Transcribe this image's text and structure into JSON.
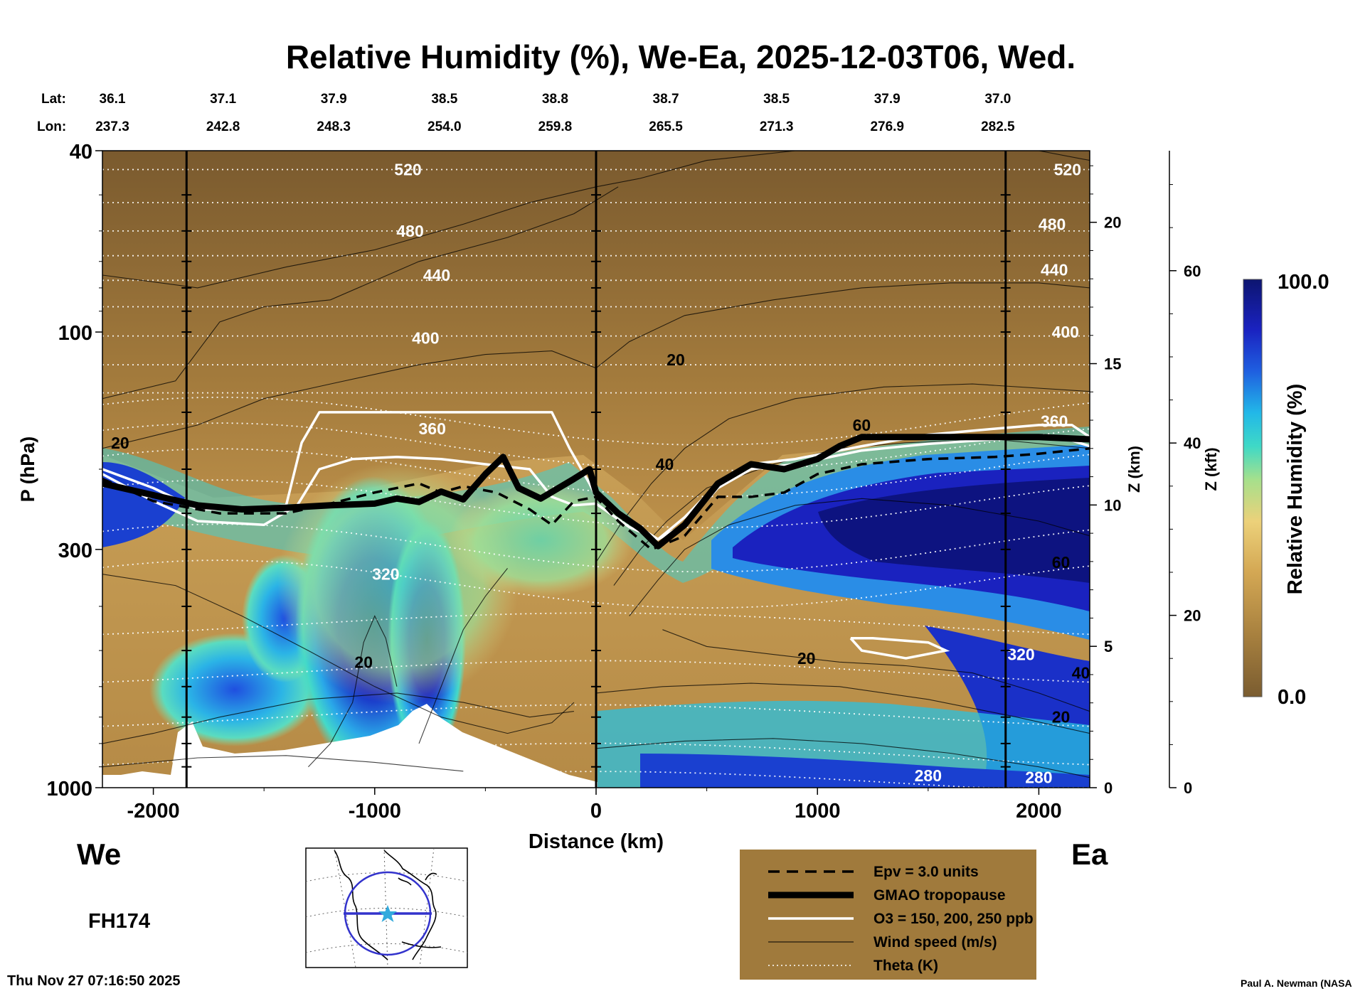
{
  "chart_data": {
    "type": "heatmap",
    "title": "Relative Humidity (%), We-Ea, 2025-12-03T06, Wed.",
    "xlabel": "Distance (km)",
    "ylabel": "P (hPa)",
    "right_axis_1_label": "Z (km)",
    "right_axis_2_label": "Z (kft)",
    "colorbar_label": "Relative Humidity (%)",
    "colorbar_max_label": "100.0",
    "colorbar_min_label": "0.0",
    "xlim": [
      -2230,
      2230
    ],
    "ylim": [
      1000,
      40
    ],
    "y_scale": "log",
    "x_ticks": [
      "-2000",
      "-1000",
      "0",
      "1000",
      "2000"
    ],
    "x_tick_values": [
      -2000,
      -1000,
      0,
      1000,
      2000
    ],
    "y_ticks": [
      "40",
      "100",
      "300",
      "1000"
    ],
    "y_tick_values": [
      40,
      100,
      300,
      1000
    ],
    "zkm_ticks": [
      "0",
      "5",
      "10",
      "15",
      "20"
    ],
    "zkm_tick_values": [
      0,
      5,
      10,
      15,
      20
    ],
    "zkft_ticks": [
      "0",
      "20",
      "40",
      "60"
    ],
    "zkft_tick_values": [
      0,
      20,
      40,
      60
    ],
    "lat_label": "Lat:",
    "lon_label": "Lon:",
    "lats": [
      "36.1",
      "37.1",
      "37.9",
      "38.5",
      "38.8",
      "38.7",
      "38.5",
      "37.9",
      "37.0"
    ],
    "lons": [
      "237.3",
      "242.8",
      "248.3",
      "254.0",
      "259.8",
      "265.5",
      "271.3",
      "276.9",
      "282.5"
    ],
    "latlon_distance": [
      -2230,
      -1730,
      -1230,
      -730,
      -230,
      270,
      770,
      1270,
      1770
    ],
    "vertical_lines_km": [
      -1850,
      0,
      1850
    ],
    "left_end_label": "We",
    "right_end_label": "Ea",
    "forecast_hour": "FH174",
    "timestamp": "Thu Nov 27 07:16:50 2025",
    "credit": "Paul A. Newman (NASA",
    "tropopause": {
      "x": [
        -2230,
        -2000,
        -1800,
        -1600,
        -1400,
        -1200,
        -1000,
        -900,
        -800,
        -700,
        -600,
        -500,
        -420,
        -350,
        -250,
        -100,
        -30,
        0,
        100,
        200,
        280,
        400,
        550,
        700,
        850,
        1000,
        1100,
        1200,
        1500,
        1800,
        2000,
        2230
      ],
      "p": [
        215,
        228,
        240,
        245,
        243,
        240,
        238,
        232,
        236,
        224,
        233,
        205,
        188,
        220,
        232,
        210,
        200,
        225,
        250,
        270,
        295,
        265,
        215,
        195,
        200,
        190,
        178,
        170,
        170,
        170,
        170,
        172
      ]
    },
    "epv_line": {
      "x": [
        -2230,
        -2000,
        -1700,
        -1400,
        -1200,
        -1000,
        -800,
        -700,
        -600,
        -450,
        -300,
        -200,
        -100,
        0,
        100,
        250,
        400,
        550,
        700,
        850,
        1000,
        1200,
        1500,
        1800,
        2000,
        2230
      ],
      "p": [
        210,
        235,
        250,
        250,
        238,
        225,
        215,
        225,
        218,
        225,
        245,
        265,
        235,
        230,
        260,
        300,
        280,
        230,
        230,
        225,
        205,
        195,
        190,
        188,
        185,
        180
      ]
    },
    "ozone_contours": [
      {
        "x": [
          -2230,
          -2000,
          -1800,
          -1600,
          -1400,
          -1330,
          -1250,
          -900,
          -500,
          -200,
          -120,
          -30,
          0,
          150,
          280,
          400,
          550,
          700,
          900,
          1200,
          1500,
          1800,
          2000,
          2150,
          2230
        ],
        "p": [
          200,
          220,
          245,
          245,
          240,
          175,
          150,
          150,
          150,
          150,
          180,
          215,
          230,
          260,
          285,
          255,
          215,
          195,
          190,
          178,
          168,
          163,
          160,
          160,
          170
        ]
      },
      {
        "x": [
          -2230,
          -2000,
          -1800,
          -1500,
          -1350,
          -1250,
          -1100,
          -900,
          -700,
          -500,
          -300,
          -200,
          -100,
          0,
          150,
          280,
          400,
          550,
          700,
          900,
          1200,
          1500,
          1800,
          2100,
          2230
        ],
        "p": [
          205,
          235,
          260,
          265,
          240,
          200,
          190,
          188,
          190,
          195,
          200,
          230,
          240,
          238,
          268,
          285,
          265,
          220,
          200,
          195,
          182,
          176,
          172,
          170,
          178
        ]
      }
    ],
    "wind_contour_labels": [
      "20",
      "20",
      "40",
      "60",
      "60",
      "20",
      "20",
      "40",
      "20"
    ],
    "wind_contour_label_positions": [
      [
        -2150,
        175
      ],
      [
        -1050,
        530
      ],
      [
        310,
        195
      ],
      [
        1200,
        160
      ],
      [
        2100,
        320
      ],
      [
        950,
        520
      ],
      [
        360,
        115
      ],
      [
        2190,
        560
      ],
      [
        2100,
        700
      ]
    ],
    "theta_labels": [
      "520",
      "480",
      "440",
      "400",
      "360",
      "320",
      "280",
      "520",
      "480",
      "440",
      "400",
      "360",
      "320",
      "280"
    ],
    "theta_label_positions": [
      [
        -850,
        44
      ],
      [
        -840,
        60
      ],
      [
        -720,
        75
      ],
      [
        -770,
        103
      ],
      [
        -740,
        163
      ],
      [
        -950,
        340
      ],
      [
        1500,
        940
      ],
      [
        2130,
        44
      ],
      [
        2060,
        58
      ],
      [
        2070,
        73
      ],
      [
        2120,
        100
      ],
      [
        2070,
        157
      ],
      [
        1920,
        510
      ],
      [
        2000,
        950
      ]
    ],
    "legend": {
      "items": [
        {
          "label": "Epv = 3.0 units",
          "style": "dashed-black"
        },
        {
          "label": "GMAO tropopause",
          "style": "thick-black"
        },
        {
          "label": "O3 = 150, 200, 250 ppb",
          "style": "white"
        },
        {
          "label": "Wind speed (m/s)",
          "style": "thin-black"
        },
        {
          "label": "Theta (K)",
          "style": "dotted-white"
        }
      ]
    },
    "colors": {
      "dry": "#8a6a3a",
      "mid": "#c99c55",
      "moist_cyan": "#2fd6e0",
      "moist_blue": "#1c2fc8",
      "saturated": "#0d1070",
      "legend_bg": "#a07a3c",
      "map_line": "#3333cc",
      "map_star": "#33aadd"
    }
  }
}
